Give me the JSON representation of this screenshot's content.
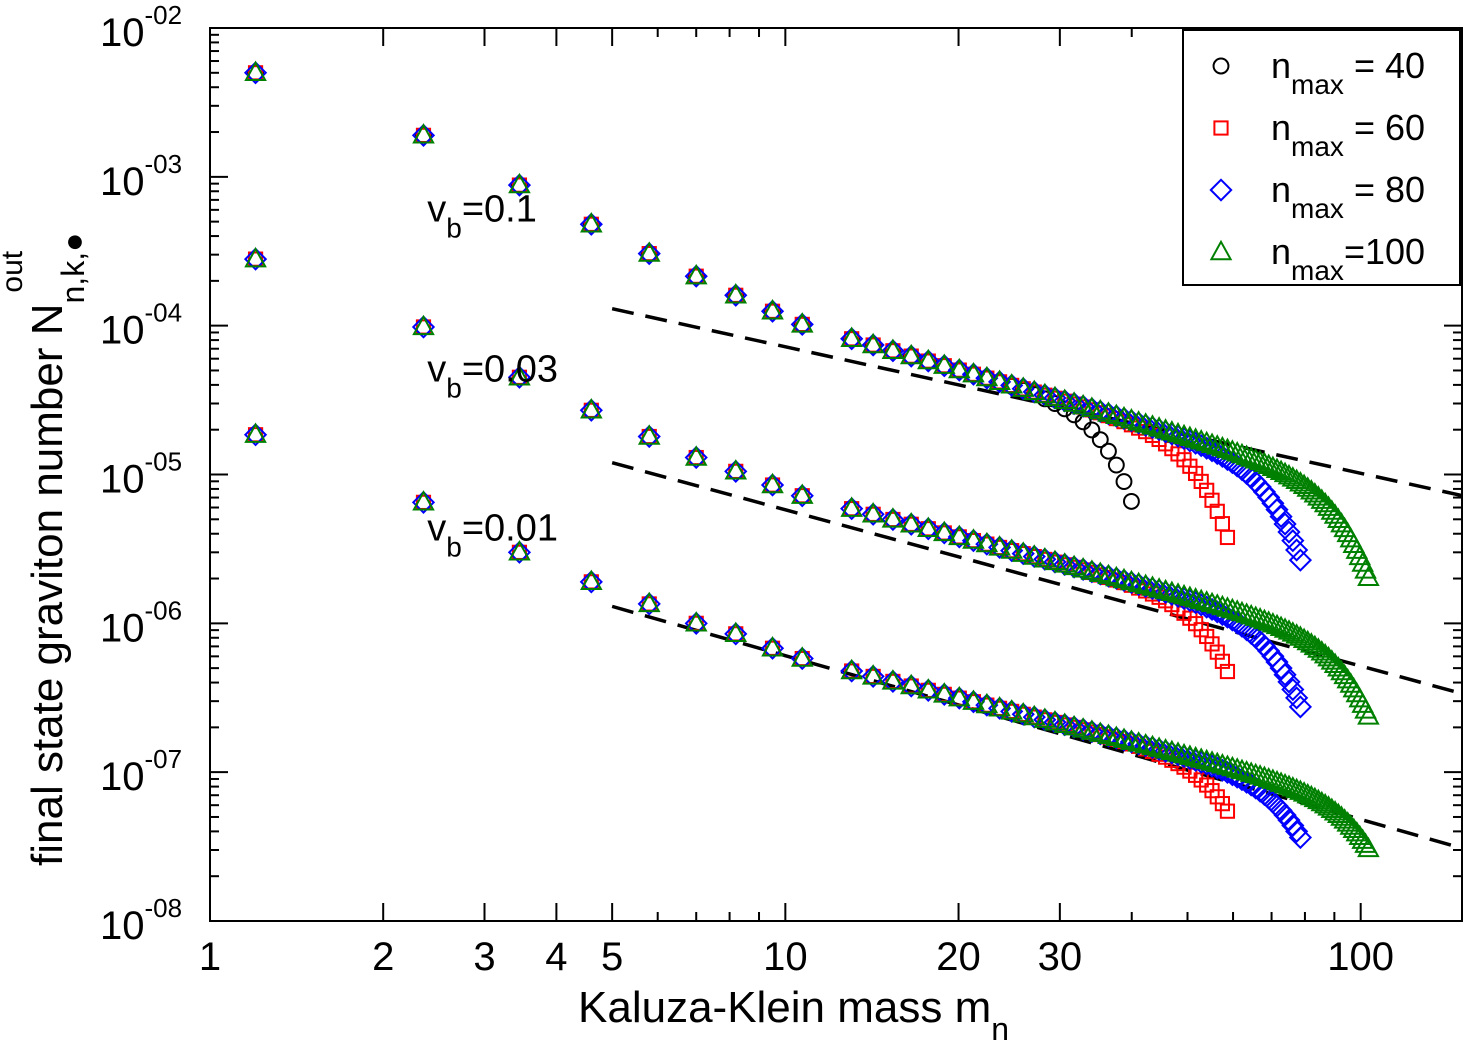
{
  "chart_data": {
    "type": "scatter",
    "title": "",
    "xlabel": {
      "main": "Kaluza-Klein mass m",
      "sub": "n"
    },
    "ylabel": {
      "main": "final state graviton number N",
      "sub": "n,k,●",
      "sup": "out"
    },
    "x_scale": "log",
    "y_scale": "log",
    "xlim": [
      1,
      150
    ],
    "ylim": [
      1e-08,
      0.01
    ],
    "x_ticks": [
      {
        "value": 1,
        "label": "1"
      },
      {
        "value": 2,
        "label": "2"
      },
      {
        "value": 3,
        "label": "3"
      },
      {
        "value": 4,
        "label": "4"
      },
      {
        "value": 5,
        "label": "5"
      },
      {
        "value": 10,
        "label": "10"
      },
      {
        "value": 20,
        "label": "20"
      },
      {
        "value": 30,
        "label": "30"
      },
      {
        "value": 100,
        "label": "100"
      }
    ],
    "y_ticks": [
      {
        "value": 1e-08,
        "base": "10",
        "exp": "-08"
      },
      {
        "value": 1e-07,
        "base": "10",
        "exp": "-07"
      },
      {
        "value": 1e-06,
        "base": "10",
        "exp": "-06"
      },
      {
        "value": 1e-05,
        "base": "10",
        "exp": "-05"
      },
      {
        "value": 0.0001,
        "base": "10",
        "exp": "-04"
      },
      {
        "value": 0.001,
        "base": "10",
        "exp": "-03"
      },
      {
        "value": 0.01,
        "base": "10",
        "exp": "-02"
      }
    ],
    "grid": false,
    "legend_position": "top-right",
    "series": [
      {
        "key": "n40",
        "legend_main": "n",
        "legend_sub": "max",
        "legend_rest": " = 40",
        "marker": "circle",
        "color": "#000000",
        "n_max": 40
      },
      {
        "key": "n60",
        "legend_main": "n",
        "legend_sub": "max",
        "legend_rest": " = 60",
        "marker": "square",
        "color": "#ff0000",
        "n_max": 60
      },
      {
        "key": "n80",
        "legend_main": "n",
        "legend_sub": "max",
        "legend_rest": " = 80",
        "marker": "diamond",
        "color": "#0000ff",
        "n_max": 80
      },
      {
        "key": "n100",
        "legend_main": "n",
        "legend_sub": "max",
        "legend_rest": "=100",
        "marker": "triangle",
        "color": "#008000",
        "n_max": 100
      }
    ],
    "groups": [
      {
        "label_main": "v",
        "label_sub": "b",
        "label_rest": "=0.1",
        "label_anchor": {
          "x": 2.8,
          "y": 0.0005
        },
        "head": [
          [
            1.2,
            0.005
          ],
          [
            2.35,
            0.0019
          ],
          [
            3.45,
            0.00088
          ],
          [
            4.6,
            0.00048
          ],
          [
            5.8,
            0.000305
          ],
          [
            7.0,
            0.000215
          ],
          [
            8.2,
            0.00016
          ],
          [
            9.5,
            0.000125
          ],
          [
            10.7,
            0.000102
          ]
        ],
        "ref_point": [
          10.7,
          0.000102
        ],
        "slope": -1.5,
        "dash_start_x": 5,
        "dash_start_y": 0.00013,
        "dash_slope": -0.85,
        "series_end": {
          "n40": {
            "x_end": 40.5,
            "y_end": 5.6e-06
          },
          "n60": {
            "x_end": 59.5,
            "y_end": 3.2e-06
          },
          "n80": {
            "x_end": 79.0,
            "y_end": 2.5e-06
          },
          "n100": {
            "x_end": 104.0,
            "y_end": 1.85e-06
          }
        }
      },
      {
        "label_main": "v",
        "label_sub": "b",
        "label_rest": "=0.03",
        "label_anchor": {
          "x": 2.8,
          "y": 4.2e-05
        },
        "head": [
          [
            1.2,
            0.00028
          ],
          [
            2.35,
            9.8e-05
          ],
          [
            3.45,
            4.5e-05
          ],
          [
            4.6,
            2.7e-05
          ],
          [
            5.8,
            1.8e-05
          ],
          [
            7.0,
            1.3e-05
          ],
          [
            8.2,
            1.05e-05
          ],
          [
            9.5,
            8.5e-06
          ],
          [
            10.7,
            7.2e-06
          ]
        ],
        "ref_point": [
          10.7,
          7.2e-06
        ],
        "slope": -1.35,
        "dash_start_x": 5,
        "dash_start_y": 1.2e-05,
        "dash_slope": -1.05,
        "series_end": {
          "n60": {
            "x_end": 59.5,
            "y_end": 4.2e-07
          },
          "n80": {
            "x_end": 79.0,
            "y_end": 2.6e-07
          },
          "n100": {
            "x_end": 104.0,
            "y_end": 2.2e-07
          }
        }
      },
      {
        "label_main": "v",
        "label_sub": "b",
        "label_rest": "=0.01",
        "label_anchor": {
          "x": 2.8,
          "y": 3.6e-06
        },
        "head": [
          [
            1.2,
            1.85e-05
          ],
          [
            2.35,
            6.5e-06
          ],
          [
            3.45,
            3e-06
          ],
          [
            4.6,
            1.9e-06
          ],
          [
            5.8,
            1.35e-06
          ],
          [
            7.0,
            1e-06
          ],
          [
            8.2,
            8.5e-07
          ],
          [
            9.5,
            6.8e-07
          ],
          [
            10.7,
            5.8e-07
          ]
        ],
        "ref_point": [
          10.7,
          5.8e-07
        ],
        "slope": -1.3,
        "dash_start_x": 5,
        "dash_start_y": 1.3e-06,
        "dash_slope": -1.1,
        "series_end": {
          "n60": {
            "x_end": 59.5,
            "y_end": 5e-08
          },
          "n80": {
            "x_end": 79.0,
            "y_end": 3.5e-08
          },
          "n100": {
            "x_end": 104.0,
            "y_end": 2.9e-08
          }
        }
      }
    ]
  }
}
